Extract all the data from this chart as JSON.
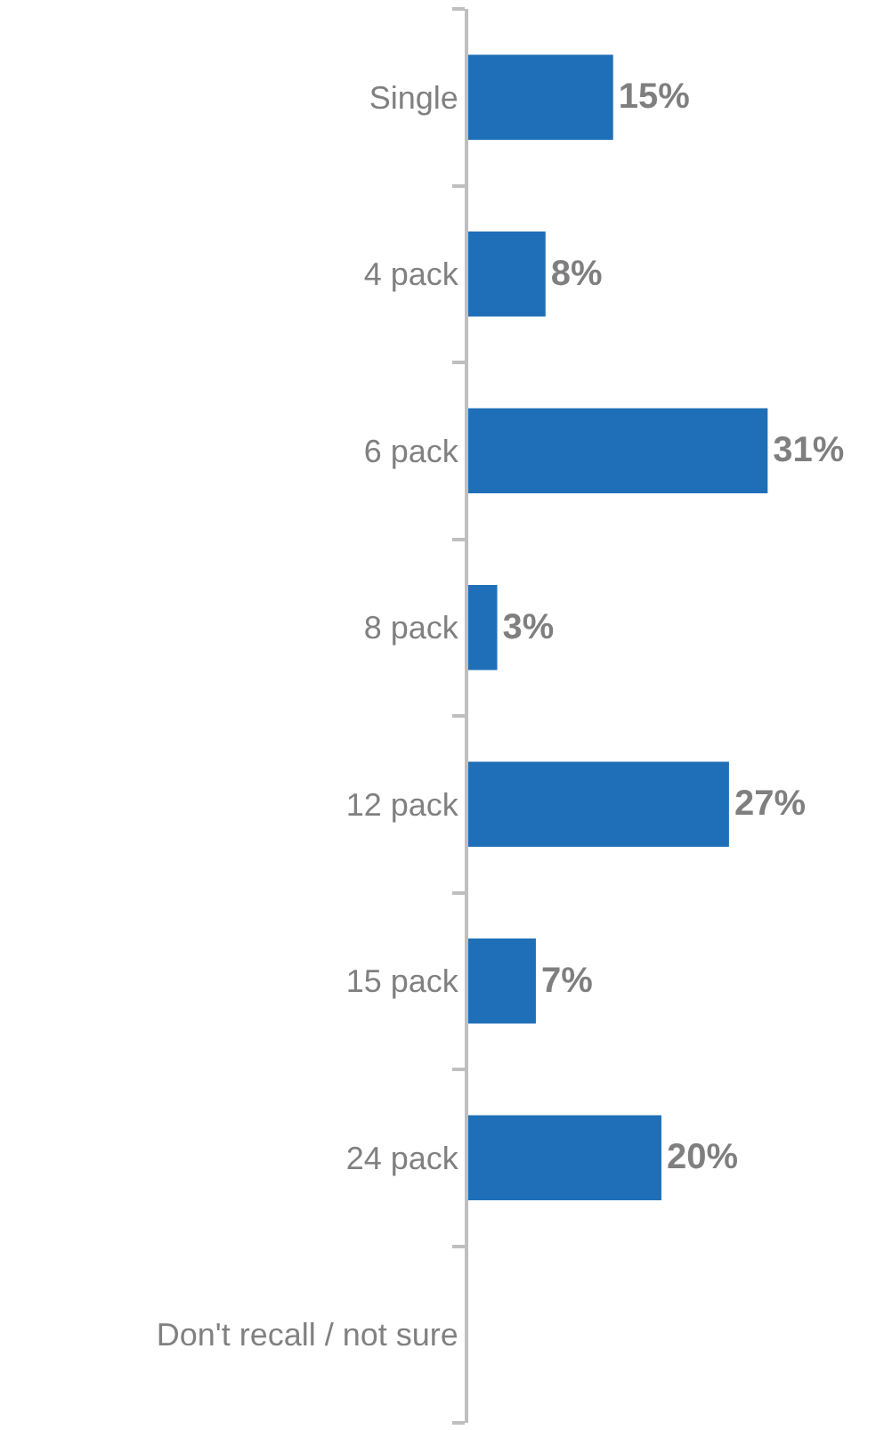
{
  "chart_data": {
    "type": "bar",
    "orientation": "horizontal",
    "categories": [
      "Single",
      "4 pack",
      "6 pack",
      "8 pack",
      "12 pack",
      "15 pack",
      "24 pack",
      "Don't recall / not sure"
    ],
    "values": [
      15,
      8,
      31,
      3,
      27,
      7,
      20,
      null
    ],
    "value_labels": [
      "15%",
      "8%",
      "31%",
      "3%",
      "27%",
      "7%",
      "20%",
      null
    ],
    "color": "#1f6fb8"
  }
}
